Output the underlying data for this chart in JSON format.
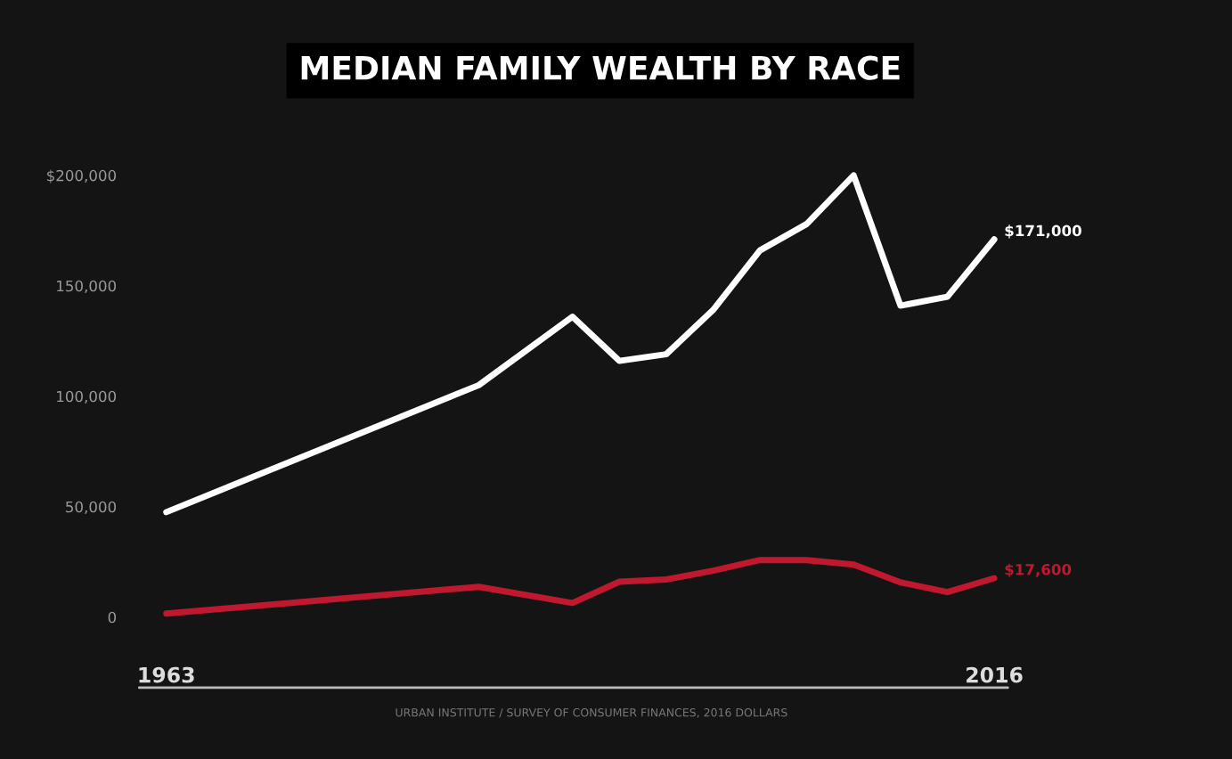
{
  "chart_data": {
    "type": "line",
    "title": "MEDIAN FAMILY WEALTH BY RACE",
    "x": [
      1963,
      1983,
      1989,
      1992,
      1995,
      1998,
      2001,
      2004,
      2007,
      2010,
      2013,
      2016
    ],
    "series": [
      {
        "color": "#ffffff",
        "values": [
          47500,
          105000,
          136000,
          116000,
          119000,
          139000,
          166000,
          178000,
          200000,
          141000,
          145000,
          171000
        ]
      },
      {
        "color": "#c0182f",
        "values": [
          1600,
          13700,
          6400,
          16000,
          17000,
          21000,
          25800,
          25800,
          23800,
          15700,
          11300,
          17600
        ]
      }
    ],
    "xlim": [
      1963,
      2016
    ],
    "xticks": [
      1963,
      2016
    ],
    "ylim": [
      0,
      200000
    ],
    "yticks": [
      0,
      {
        "value": 50000,
        "label": "50,000"
      },
      {
        "value": 100000,
        "label": "100,000"
      },
      {
        "value": 150000,
        "label": "150,000"
      },
      {
        "value": 200000,
        "label": "$200,000"
      }
    ],
    "annotations": [
      {
        "text": "$171,000",
        "x": 2016,
        "y": 171000
      },
      {
        "text": "$17,600",
        "x": 2016,
        "y": 17600
      },
      "URBAN INSTITUTE / SURVEY OF CONSUMER FINANCES, 2016 DOLLARS"
    ],
    "marker": "none",
    "line_style": "solid"
  }
}
